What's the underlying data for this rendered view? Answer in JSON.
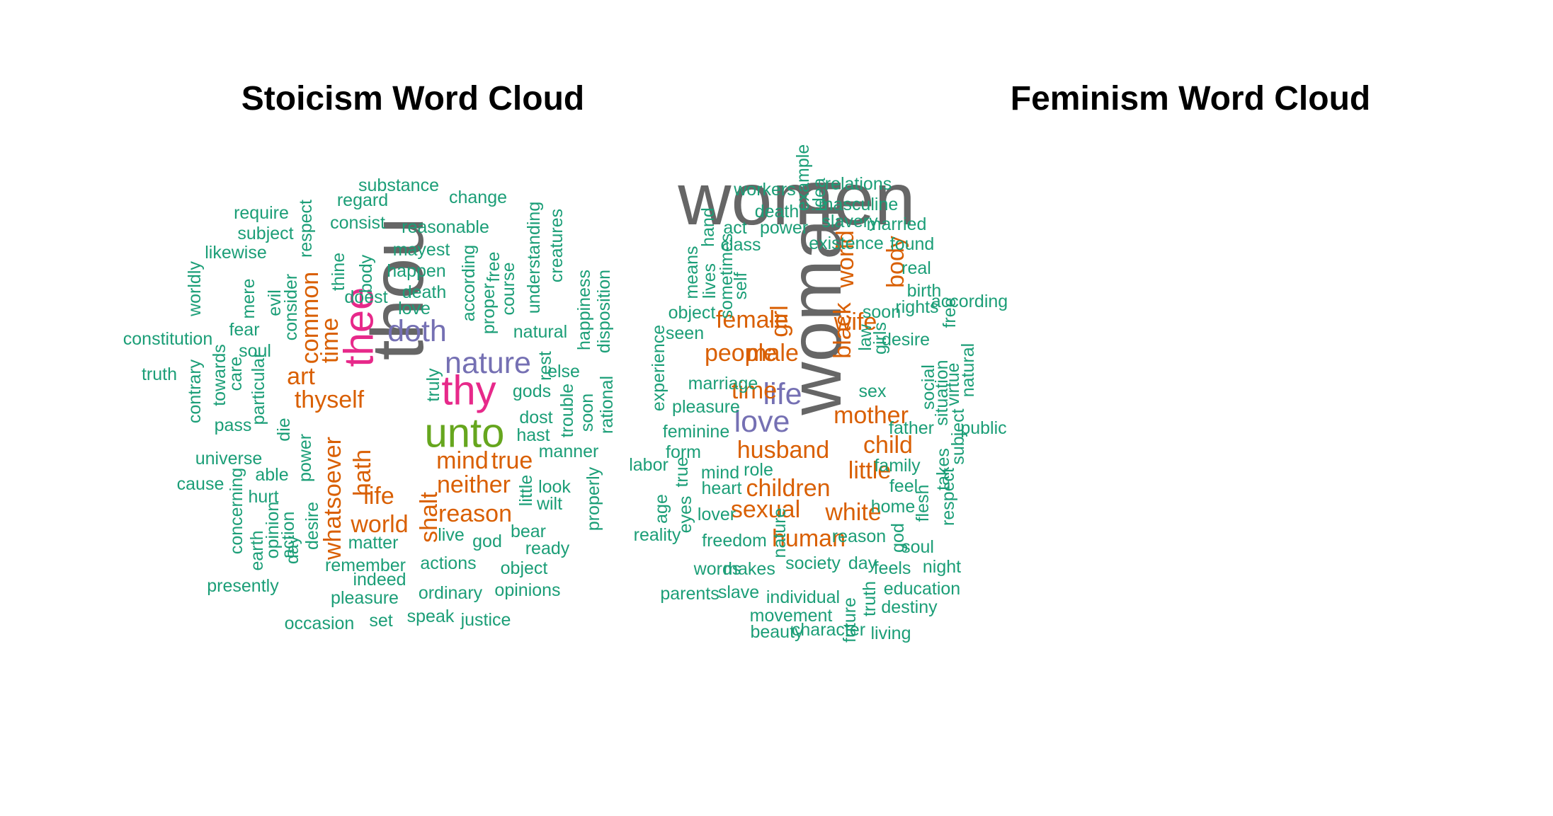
{
  "colors": {
    "c1": "#1b9e77",
    "c2": "#d95f02",
    "c3": "#7570b3",
    "c4": "#e7298a",
    "c5": "#66a61e",
    "c6": "#666666"
  },
  "chart_data": [
    {
      "type": "wordcloud",
      "title": "Stoicism Word Cloud",
      "words": [
        {
          "text": "thou",
          "color": "c6",
          "size": 6
        },
        {
          "text": "unto",
          "color": "c5",
          "size": 5
        },
        {
          "text": "thee",
          "color": "c4",
          "size": 4
        },
        {
          "text": "thy",
          "color": "c4",
          "size": 4
        },
        {
          "text": "nature",
          "color": "c3",
          "size": 3
        },
        {
          "text": "doth",
          "color": "c3",
          "size": 3
        },
        {
          "text": "thyself",
          "color": "c2",
          "size": 2
        },
        {
          "text": "hath",
          "color": "c2",
          "size": 2
        },
        {
          "text": "whatsoever",
          "color": "c2",
          "size": 2
        },
        {
          "text": "mind",
          "color": "c2",
          "size": 2
        },
        {
          "text": "art",
          "color": "c2",
          "size": 2
        },
        {
          "text": "time",
          "color": "c2",
          "size": 2
        },
        {
          "text": "common",
          "color": "c2",
          "size": 2
        },
        {
          "text": "life",
          "color": "c2",
          "size": 2
        },
        {
          "text": "world",
          "color": "c2",
          "size": 2
        },
        {
          "text": "true",
          "color": "c2",
          "size": 2
        },
        {
          "text": "neither",
          "color": "c2",
          "size": 2
        },
        {
          "text": "reason",
          "color": "c2",
          "size": 2
        },
        {
          "text": "shalt",
          "color": "c2",
          "size": 2
        },
        {
          "text": "power",
          "color": "c1",
          "size": 1
        },
        {
          "text": "substance",
          "color": "c1",
          "size": 1
        },
        {
          "text": "change",
          "color": "c1",
          "size": 1
        },
        {
          "text": "regard",
          "color": "c1",
          "size": 1
        },
        {
          "text": "require",
          "color": "c1",
          "size": 1
        },
        {
          "text": "consist",
          "color": "c1",
          "size": 1
        },
        {
          "text": "reasonable",
          "color": "c1",
          "size": 1
        },
        {
          "text": "subject",
          "color": "c1",
          "size": 1
        },
        {
          "text": "respect",
          "color": "c1",
          "size": 1
        },
        {
          "text": "likewise",
          "color": "c1",
          "size": 1
        },
        {
          "text": "mayest",
          "color": "c1",
          "size": 1
        },
        {
          "text": "happen",
          "color": "c1",
          "size": 1
        },
        {
          "text": "thine",
          "color": "c1",
          "size": 1
        },
        {
          "text": "body",
          "color": "c1",
          "size": 1
        },
        {
          "text": "according",
          "color": "c1",
          "size": 1
        },
        {
          "text": "free",
          "color": "c1",
          "size": 1
        },
        {
          "text": "course",
          "color": "c1",
          "size": 1
        },
        {
          "text": "understanding",
          "color": "c1",
          "size": 1
        },
        {
          "text": "creatures",
          "color": "c1",
          "size": 1
        },
        {
          "text": "worldly",
          "color": "c1",
          "size": 1
        },
        {
          "text": "mere",
          "color": "c1",
          "size": 1
        },
        {
          "text": "evil",
          "color": "c1",
          "size": 1
        },
        {
          "text": "consider",
          "color": "c1",
          "size": 1
        },
        {
          "text": "doest",
          "color": "c1",
          "size": 1
        },
        {
          "text": "death",
          "color": "c1",
          "size": 1
        },
        {
          "text": "love",
          "color": "c1",
          "size": 1
        },
        {
          "text": "proper",
          "color": "c1",
          "size": 1
        },
        {
          "text": "natural",
          "color": "c1",
          "size": 1
        },
        {
          "text": "happiness",
          "color": "c1",
          "size": 1
        },
        {
          "text": "disposition",
          "color": "c1",
          "size": 1
        },
        {
          "text": "constitution",
          "color": "c1",
          "size": 1
        },
        {
          "text": "fear",
          "color": "c1",
          "size": 1
        },
        {
          "text": "soul",
          "color": "c1",
          "size": 1
        },
        {
          "text": "truth",
          "color": "c1",
          "size": 1
        },
        {
          "text": "towards",
          "color": "c1",
          "size": 1
        },
        {
          "text": "care",
          "color": "c1",
          "size": 1
        },
        {
          "text": "contrary",
          "color": "c1",
          "size": 1
        },
        {
          "text": "particular",
          "color": "c1",
          "size": 1
        },
        {
          "text": "rest",
          "color": "c1",
          "size": 1
        },
        {
          "text": "else",
          "color": "c1",
          "size": 1
        },
        {
          "text": "truly",
          "color": "c1",
          "size": 1
        },
        {
          "text": "gods",
          "color": "c1",
          "size": 1
        },
        {
          "text": "dost",
          "color": "c1",
          "size": 1
        },
        {
          "text": "trouble",
          "color": "c1",
          "size": 1
        },
        {
          "text": "soon",
          "color": "c1",
          "size": 1
        },
        {
          "text": "rational",
          "color": "c1",
          "size": 1
        },
        {
          "text": "pass",
          "color": "c1",
          "size": 1
        },
        {
          "text": "die",
          "color": "c1",
          "size": 1
        },
        {
          "text": "hast",
          "color": "c1",
          "size": 1
        },
        {
          "text": "manner",
          "color": "c1",
          "size": 1
        },
        {
          "text": "universe",
          "color": "c1",
          "size": 1
        },
        {
          "text": "able",
          "color": "c1",
          "size": 1
        },
        {
          "text": "cause",
          "color": "c1",
          "size": 1
        },
        {
          "text": "hurt",
          "color": "c1",
          "size": 1
        },
        {
          "text": "concerning",
          "color": "c1",
          "size": 1
        },
        {
          "text": "opinion",
          "color": "c1",
          "size": 1
        },
        {
          "text": "earth",
          "color": "c1",
          "size": 1
        },
        {
          "text": "day",
          "color": "c1",
          "size": 1
        },
        {
          "text": "action",
          "color": "c1",
          "size": 1
        },
        {
          "text": "desire",
          "color": "c1",
          "size": 1
        },
        {
          "text": "little",
          "color": "c1",
          "size": 1
        },
        {
          "text": "look",
          "color": "c1",
          "size": 1
        },
        {
          "text": "wilt",
          "color": "c1",
          "size": 1
        },
        {
          "text": "properly",
          "color": "c1",
          "size": 1
        },
        {
          "text": "bear",
          "color": "c1",
          "size": 1
        },
        {
          "text": "ready",
          "color": "c1",
          "size": 1
        },
        {
          "text": "live",
          "color": "c1",
          "size": 1
        },
        {
          "text": "god",
          "color": "c1",
          "size": 1
        },
        {
          "text": "matter",
          "color": "c1",
          "size": 1
        },
        {
          "text": "remember",
          "color": "c1",
          "size": 1
        },
        {
          "text": "actions",
          "color": "c1",
          "size": 1
        },
        {
          "text": "object",
          "color": "c1",
          "size": 1
        },
        {
          "text": "presently",
          "color": "c1",
          "size": 1
        },
        {
          "text": "indeed",
          "color": "c1",
          "size": 1
        },
        {
          "text": "pleasure",
          "color": "c1",
          "size": 1
        },
        {
          "text": "ordinary",
          "color": "c1",
          "size": 1
        },
        {
          "text": "opinions",
          "color": "c1",
          "size": 1
        },
        {
          "text": "occasion",
          "color": "c1",
          "size": 1
        },
        {
          "text": "set",
          "color": "c1",
          "size": 1
        },
        {
          "text": "speak",
          "color": "c1",
          "size": 1
        },
        {
          "text": "justice",
          "color": "c1",
          "size": 1
        }
      ]
    },
    {
      "type": "wordcloud",
      "title": "Feminism Word Cloud",
      "words": [
        {
          "text": "women",
          "color": "c6",
          "size": 6
        },
        {
          "text": "woman",
          "color": "c6",
          "size": 6
        },
        {
          "text": "life",
          "color": "c3",
          "size": 3
        },
        {
          "text": "love",
          "color": "c3",
          "size": 3
        },
        {
          "text": "female",
          "color": "c2",
          "size": 2
        },
        {
          "text": "wife",
          "color": "c2",
          "size": 2
        },
        {
          "text": "people",
          "color": "c2",
          "size": 2
        },
        {
          "text": "male",
          "color": "c2",
          "size": 2
        },
        {
          "text": "world",
          "color": "c2",
          "size": 2
        },
        {
          "text": "body",
          "color": "c2",
          "size": 2
        },
        {
          "text": "time",
          "color": "c2",
          "size": 2
        },
        {
          "text": "mother",
          "color": "c2",
          "size": 2
        },
        {
          "text": "black",
          "color": "c2",
          "size": 2
        },
        {
          "text": "husband",
          "color": "c2",
          "size": 2
        },
        {
          "text": "child",
          "color": "c2",
          "size": 2
        },
        {
          "text": "little",
          "color": "c2",
          "size": 2
        },
        {
          "text": "girl",
          "color": "c2",
          "size": 2
        },
        {
          "text": "children",
          "color": "c2",
          "size": 2
        },
        {
          "text": "sexual",
          "color": "c2",
          "size": 2
        },
        {
          "text": "white",
          "color": "c2",
          "size": 2
        },
        {
          "text": "human",
          "color": "c2",
          "size": 2
        },
        {
          "text": "example",
          "color": "c1",
          "size": 1
        },
        {
          "text": "workers",
          "color": "c1",
          "size": 1
        },
        {
          "text": "idea",
          "color": "c1",
          "size": 1
        },
        {
          "text": "relations",
          "color": "c1",
          "size": 1
        },
        {
          "text": "masculine",
          "color": "c1",
          "size": 1
        },
        {
          "text": "death",
          "color": "c1",
          "size": 1
        },
        {
          "text": "slavery",
          "color": "c1",
          "size": 1
        },
        {
          "text": "married",
          "color": "c1",
          "size": 1
        },
        {
          "text": "hand",
          "color": "c1",
          "size": 1
        },
        {
          "text": "act",
          "color": "c1",
          "size": 1
        },
        {
          "text": "power",
          "color": "c1",
          "size": 1
        },
        {
          "text": "class",
          "color": "c1",
          "size": 1
        },
        {
          "text": "existence",
          "color": "c1",
          "size": 1
        },
        {
          "text": "found",
          "color": "c1",
          "size": 1
        },
        {
          "text": "means",
          "color": "c1",
          "size": 1
        },
        {
          "text": "lives",
          "color": "c1",
          "size": 1
        },
        {
          "text": "sometimes",
          "color": "c1",
          "size": 1
        },
        {
          "text": "self",
          "color": "c1",
          "size": 1
        },
        {
          "text": "real",
          "color": "c1",
          "size": 1
        },
        {
          "text": "birth",
          "color": "c1",
          "size": 1
        },
        {
          "text": "rights",
          "color": "c1",
          "size": 1
        },
        {
          "text": "according",
          "color": "c1",
          "size": 1
        },
        {
          "text": "object",
          "color": "c1",
          "size": 1
        },
        {
          "text": "soon",
          "color": "c1",
          "size": 1
        },
        {
          "text": "free",
          "color": "c1",
          "size": 1
        },
        {
          "text": "seen",
          "color": "c1",
          "size": 1
        },
        {
          "text": "law",
          "color": "c1",
          "size": 1
        },
        {
          "text": "girls",
          "color": "c1",
          "size": 1
        },
        {
          "text": "desire",
          "color": "c1",
          "size": 1
        },
        {
          "text": "experience",
          "color": "c1",
          "size": 1
        },
        {
          "text": "marriage",
          "color": "c1",
          "size": 1
        },
        {
          "text": "sex",
          "color": "c1",
          "size": 1
        },
        {
          "text": "social",
          "color": "c1",
          "size": 1
        },
        {
          "text": "situation",
          "color": "c1",
          "size": 1
        },
        {
          "text": "virtue",
          "color": "c1",
          "size": 1
        },
        {
          "text": "natural",
          "color": "c1",
          "size": 1
        },
        {
          "text": "pleasure",
          "color": "c1",
          "size": 1
        },
        {
          "text": "feminine",
          "color": "c1",
          "size": 1
        },
        {
          "text": "father",
          "color": "c1",
          "size": 1
        },
        {
          "text": "public",
          "color": "c1",
          "size": 1
        },
        {
          "text": "subject",
          "color": "c1",
          "size": 1
        },
        {
          "text": "labor",
          "color": "c1",
          "size": 1
        },
        {
          "text": "form",
          "color": "c1",
          "size": 1
        },
        {
          "text": "true",
          "color": "c1",
          "size": 1
        },
        {
          "text": "mind",
          "color": "c1",
          "size": 1
        },
        {
          "text": "role",
          "color": "c1",
          "size": 1
        },
        {
          "text": "family",
          "color": "c1",
          "size": 1
        },
        {
          "text": "takes",
          "color": "c1",
          "size": 1
        },
        {
          "text": "age",
          "color": "c1",
          "size": 1
        },
        {
          "text": "heart",
          "color": "c1",
          "size": 1
        },
        {
          "text": "feel",
          "color": "c1",
          "size": 1
        },
        {
          "text": "flesh",
          "color": "c1",
          "size": 1
        },
        {
          "text": "respect",
          "color": "c1",
          "size": 1
        },
        {
          "text": "reality",
          "color": "c1",
          "size": 1
        },
        {
          "text": "eyes",
          "color": "c1",
          "size": 1
        },
        {
          "text": "lover",
          "color": "c1",
          "size": 1
        },
        {
          "text": "home",
          "color": "c1",
          "size": 1
        },
        {
          "text": "freedom",
          "color": "c1",
          "size": 1
        },
        {
          "text": "nature",
          "color": "c1",
          "size": 1
        },
        {
          "text": "reason",
          "color": "c1",
          "size": 1
        },
        {
          "text": "god",
          "color": "c1",
          "size": 1
        },
        {
          "text": "soul",
          "color": "c1",
          "size": 1
        },
        {
          "text": "words",
          "color": "c1",
          "size": 1
        },
        {
          "text": "makes",
          "color": "c1",
          "size": 1
        },
        {
          "text": "society",
          "color": "c1",
          "size": 1
        },
        {
          "text": "day",
          "color": "c1",
          "size": 1
        },
        {
          "text": "feels",
          "color": "c1",
          "size": 1
        },
        {
          "text": "night",
          "color": "c1",
          "size": 1
        },
        {
          "text": "parents",
          "color": "c1",
          "size": 1
        },
        {
          "text": "slave",
          "color": "c1",
          "size": 1
        },
        {
          "text": "individual",
          "color": "c1",
          "size": 1
        },
        {
          "text": "education",
          "color": "c1",
          "size": 1
        },
        {
          "text": "truth",
          "color": "c1",
          "size": 1
        },
        {
          "text": "destiny",
          "color": "c1",
          "size": 1
        },
        {
          "text": "movement",
          "color": "c1",
          "size": 1
        },
        {
          "text": "beauty",
          "color": "c1",
          "size": 1
        },
        {
          "text": "character",
          "color": "c1",
          "size": 1
        },
        {
          "text": "future",
          "color": "c1",
          "size": 1
        },
        {
          "text": "living",
          "color": "c1",
          "size": 1
        }
      ]
    }
  ]
}
